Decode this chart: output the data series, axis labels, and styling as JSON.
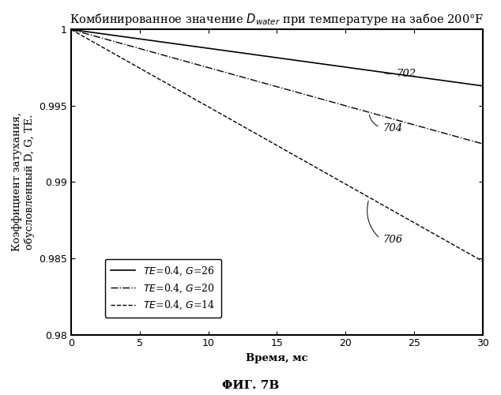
{
  "title": "Комбинированное значение D$_{water}$ при температуре на забое 200°F",
  "xlabel": "Время, мс",
  "ylabel_line1": "Коэффициент затухания,",
  "ylabel_line2": "обусловленный D, G, TE.",
  "footer": "ΦИГ. 7В",
  "xlim": [
    0,
    30
  ],
  "ylim": [
    0.98,
    1.0
  ],
  "ytick_labels": [
    "0.98",
    "0.985",
    "0.99",
    "0.995",
    "1"
  ],
  "ytick_values": [
    0.98,
    0.985,
    0.99,
    0.995,
    1.0
  ],
  "xticks": [
    0,
    5,
    10,
    15,
    20,
    25,
    30
  ],
  "lines": [
    {
      "label": "TE=0.4, G=26",
      "style": "solid",
      "end_value": 0.9963,
      "tag": "702",
      "tag_x": 23.0,
      "tag_y": 0.9971
    },
    {
      "label": "TE=0.4, G=20",
      "style": "dashdot",
      "end_value": 0.9925,
      "tag": "704",
      "tag_x": 22.0,
      "tag_y": 0.9935
    },
    {
      "label": "TE=0.4, G=14",
      "style": "dashed",
      "end_value": 0.9848,
      "tag": "706",
      "tag_x": 22.0,
      "tag_y": 0.9862
    }
  ],
  "background_color": "#ffffff",
  "line_color": "#000000",
  "fontsize_title": 10.5,
  "fontsize_axis": 9.5,
  "fontsize_tick": 9,
  "fontsize_legend": 9,
  "fontsize_footer": 11,
  "fontsize_tag": 9.5
}
